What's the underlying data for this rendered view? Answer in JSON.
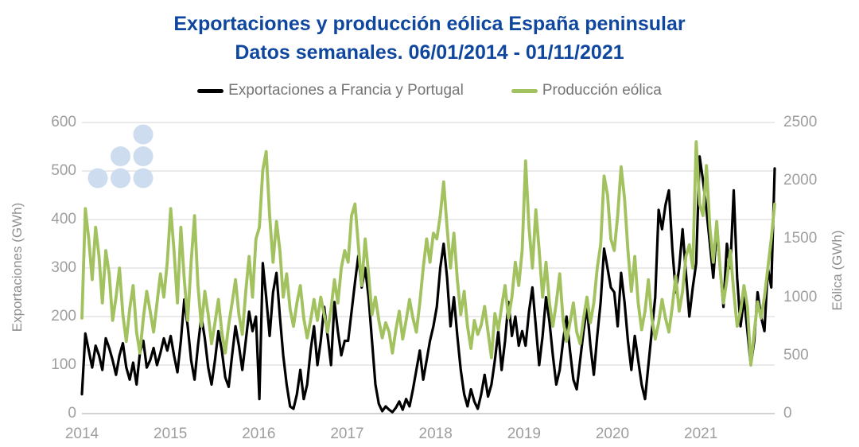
{
  "page": {
    "background": "#ffffff"
  },
  "title": {
    "line1": "Exportaciones y producción eólica España peninsular",
    "line2": "Datos semanales. 06/01/2014 - 01/11/2021",
    "color": "#10479e"
  },
  "legend": {
    "items": [
      {
        "label": "Exportaciones a Francia y Portugal",
        "color": "#000000"
      },
      {
        "label": "Producción eólica",
        "color": "#a2c15f"
      }
    ]
  },
  "watermark": {
    "name": "six-dots-triangle-logo",
    "color": "#cddcee"
  },
  "chart_data": {
    "type": "line",
    "title": "Exportaciones y producción eólica España peninsular",
    "subtitle": "Datos semanales. 06/01/2014 - 01/11/2021",
    "grid": "horizontal",
    "legend_position": "top",
    "x_start": 2014.0,
    "x_end": 2021.835,
    "x_unit": "years, approx. weekly samples (values evenly spaced)",
    "x_ticks": [
      2014,
      2015,
      2016,
      2017,
      2018,
      2019,
      2020,
      2021
    ],
    "left_axis": {
      "label": "Exportaciones (GWh)",
      "min": 0,
      "max": 600,
      "ticks": [
        0,
        100,
        200,
        300,
        400,
        500,
        600
      ]
    },
    "right_axis": {
      "label": "Eólica (GWh)",
      "min": 0,
      "max": 2500,
      "ticks": [
        0,
        500,
        1000,
        1500,
        2000,
        2500
      ]
    },
    "grid_color": "#e4e4e4",
    "baseline_color": "#c4c4c4",
    "tick_label_color": "#9e9e9e",
    "series": [
      {
        "name": "Exportaciones a Francia y Portugal",
        "axis": "left",
        "color": "#000000",
        "width": 3.2,
        "values": [
          40,
          165,
          130,
          95,
          140,
          120,
          90,
          155,
          135,
          110,
          80,
          120,
          145,
          95,
          70,
          105,
          60,
          125,
          150,
          95,
          110,
          135,
          100,
          125,
          155,
          130,
          160,
          120,
          85,
          150,
          235,
          180,
          110,
          70,
          140,
          200,
          155,
          95,
          60,
          110,
          170,
          130,
          75,
          55,
          120,
          180,
          140,
          90,
          150,
          210,
          170,
          200,
          30,
          310,
          240,
          160,
          250,
          290,
          200,
          120,
          60,
          15,
          10,
          40,
          90,
          30,
          60,
          130,
          180,
          100,
          150,
          220,
          160,
          100,
          230,
          170,
          120,
          150,
          150,
          210,
          270,
          325,
          260,
          300,
          240,
          150,
          60,
          20,
          5,
          15,
          8,
          3,
          12,
          25,
          8,
          30,
          15,
          50,
          90,
          130,
          70,
          110,
          150,
          180,
          220,
          300,
          350,
          280,
          180,
          240,
          160,
          90,
          40,
          15,
          50,
          25,
          10,
          40,
          80,
          35,
          60,
          110,
          170,
          90,
          150,
          230,
          160,
          200,
          140,
          170,
          140,
          210,
          260,
          180,
          100,
          160,
          240,
          190,
          120,
          60,
          90,
          150,
          200,
          130,
          70,
          50,
          110,
          170,
          220,
          140,
          80,
          160,
          230,
          340,
          300,
          260,
          250,
          180,
          290,
          230,
          150,
          90,
          160,
          110,
          60,
          30,
          100,
          170,
          240,
          420,
          380,
          430,
          460,
          340,
          250,
          300,
          380,
          290,
          200,
          260,
          310,
          530,
          480,
          420,
          350,
          280,
          380,
          300,
          220,
          350,
          300,
          460,
          280,
          180,
          240,
          170,
          100,
          150,
          250,
          200,
          170,
          300,
          260,
          505
        ]
      },
      {
        "name": "Producción eólica",
        "axis": "right",
        "color": "#a2c15f",
        "width": 3.8,
        "values": [
          820,
          1760,
          1500,
          1150,
          1600,
          1350,
          950,
          1400,
          1200,
          800,
          1000,
          1250,
          850,
          620,
          900,
          1100,
          700,
          520,
          820,
          1050,
          880,
          700,
          950,
          1200,
          1000,
          1300,
          1760,
          1400,
          950,
          1600,
          1150,
          800,
          1300,
          1700,
          1100,
          750,
          1050,
          850,
          600,
          780,
          980,
          700,
          520,
          760,
          950,
          1150,
          850,
          680,
          1050,
          1350,
          1000,
          1500,
          1600,
          2090,
          2250,
          1700,
          1300,
          1650,
          1400,
          1000,
          1200,
          900,
          750,
          950,
          1100,
          820,
          650,
          800,
          980,
          800,
          1000,
          850,
          700,
          900,
          1150,
          950,
          1250,
          1400,
          1300,
          1700,
          1800,
          1450,
          1100,
          1500,
          1200,
          850,
          1000,
          800,
          650,
          780,
          700,
          520,
          720,
          880,
          640,
          800,
          980,
          820,
          700,
          950,
          1250,
          1500,
          1300,
          1550,
          1500,
          1700,
          1990,
          1600,
          1250,
          1550,
          1150,
          850,
          1050,
          750,
          560,
          800,
          680,
          760,
          920,
          700,
          480,
          860,
          720,
          920,
          1100,
          820,
          1000,
          1300,
          1100,
          1400,
          2170,
          1600,
          1250,
          1750,
          1400,
          1000,
          1300,
          950,
          750,
          950,
          1200,
          800,
          620,
          780,
          950,
          700,
          600,
          820,
          1000,
          780,
          950,
          1250,
          1450,
          2040,
          1880,
          1500,
          1400,
          1700,
          2120,
          1850,
          1400,
          1050,
          1350,
          950,
          720,
          880,
          1150,
          820,
          640,
          780,
          980,
          820,
          700,
          920,
          1180,
          880,
          1050,
          1350,
          1450,
          1250,
          2335,
          1800,
          1700,
          2130,
          1600,
          1300,
          1650,
          1250,
          950,
          1150,
          1400,
          1050,
          750,
          880,
          1100,
          920,
          420,
          700,
          960,
          820,
          1000,
          1250,
          1500,
          1800
        ]
      }
    ]
  }
}
